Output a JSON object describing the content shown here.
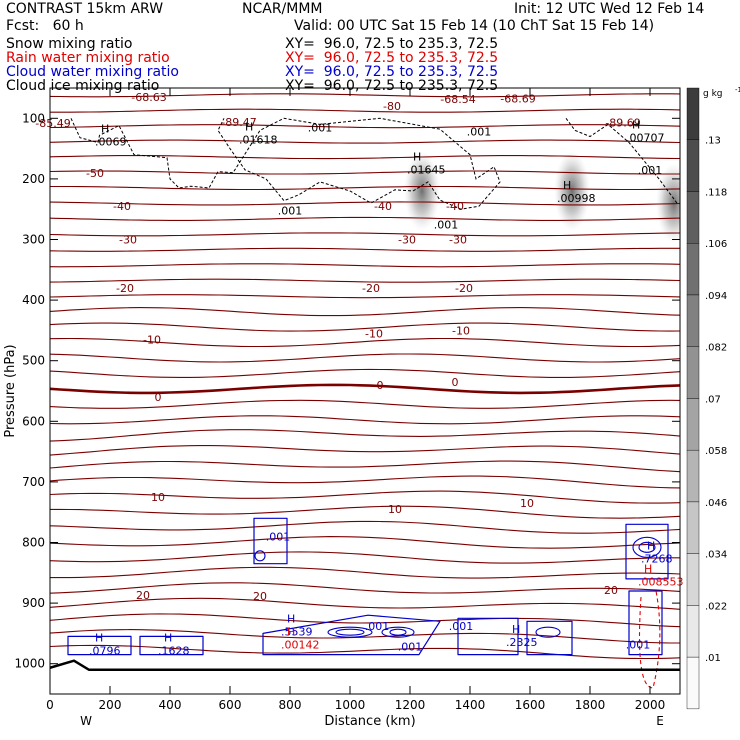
{
  "header": {
    "model": "CONTRAST 15km ARW",
    "center": "NCAR/MMM",
    "init": "Init: 12 UTC Wed 12 Feb 14",
    "fcst": "Fcst:   60 h",
    "valid": "Valid: 00 UTC Sat 15 Feb 14 (10 ChT Sat 15 Feb 14)"
  },
  "legend": [
    {
      "name": "Snow mixing ratio",
      "xy": "XY=  96.0, 72.5 to 235.3, 72.5",
      "color": "#000000"
    },
    {
      "name": "Rain water mixing ratio",
      "xy": "XY=  96.0, 72.5 to 235.3, 72.5",
      "color": "#e00000"
    },
    {
      "name": "Cloud water mixing ratio",
      "xy": "XY=  96.0, 72.5 to 235.3, 72.5",
      "color": "#0000cc"
    },
    {
      "name": "Cloud ice mixing ratio",
      "xy": "XY=  96.0, 72.5 to 235.3, 72.5",
      "color": "#000000"
    }
  ],
  "chart_data": {
    "type": "contour",
    "xlabel": "Distance (km)",
    "ylabel": "Pressure (hPa)",
    "xlim": [
      0,
      2100
    ],
    "ylim": [
      1050,
      50
    ],
    "x_ticks": [
      0,
      200,
      400,
      600,
      800,
      1000,
      1200,
      1400,
      1600,
      1800,
      2000
    ],
    "y_ticks": [
      100,
      200,
      300,
      400,
      500,
      600,
      700,
      800,
      900,
      1000
    ],
    "x_end_labels": {
      "left": "W",
      "right": "E"
    },
    "temperature_contours": {
      "color": "#7a0000",
      "labels": [
        {
          "text": "-50",
          "x": 150,
          "p": 190
        },
        {
          "text": "-40",
          "x": 240,
          "p": 245
        },
        {
          "text": "-40",
          "x": 1110,
          "p": 245
        },
        {
          "text": "-40",
          "x": 1350,
          "p": 245
        },
        {
          "text": "-30",
          "x": 260,
          "p": 300
        },
        {
          "text": "-30",
          "x": 1190,
          "p": 300
        },
        {
          "text": "-30",
          "x": 1360,
          "p": 300
        },
        {
          "text": "-20",
          "x": 250,
          "p": 380
        },
        {
          "text": "-20",
          "x": 1070,
          "p": 380
        },
        {
          "text": "-20",
          "x": 1380,
          "p": 380
        },
        {
          "text": "-10",
          "x": 340,
          "p": 465
        },
        {
          "text": "-10",
          "x": 1080,
          "p": 455
        },
        {
          "text": "-10",
          "x": 1370,
          "p": 450
        },
        {
          "text": "0",
          "x": 360,
          "p": 560
        },
        {
          "text": "0",
          "x": 1100,
          "p": 540
        },
        {
          "text": "0",
          "x": 1350,
          "p": 535
        },
        {
          "text": "10",
          "x": 360,
          "p": 725
        },
        {
          "text": "10",
          "x": 1150,
          "p": 745
        },
        {
          "text": "10",
          "x": 1590,
          "p": 735
        },
        {
          "text": "20",
          "x": 310,
          "p": 887
        },
        {
          "text": "20",
          "x": 700,
          "p": 888
        },
        {
          "text": "20",
          "x": 1870,
          "p": 878
        },
        {
          "text": "-68.63",
          "x": 330,
          "p": 65
        },
        {
          "text": "-80",
          "x": 1140,
          "p": 80
        },
        {
          "text": "-68.54",
          "x": 1360,
          "p": 68
        },
        {
          "text": "-68.69",
          "x": 1560,
          "p": 67
        },
        {
          "text": "-85.49",
          "x": 10,
          "p": 108
        },
        {
          "text": "-89.47",
          "x": 630,
          "p": 106
        },
        {
          "text": "-89.69",
          "x": 1910,
          "p": 107
        }
      ]
    },
    "snow_contours": {
      "color": "#000000",
      "labels": [
        {
          "text": ".001",
          "x": 900,
          "p": 115
        },
        {
          "text": ".001",
          "x": 1430,
          "p": 122
        },
        {
          "text": ".001",
          "x": 800,
          "p": 252
        },
        {
          "text": ".001",
          "x": 1320,
          "p": 275
        },
        {
          "text": ".001",
          "x": 2000,
          "p": 185
        }
      ],
      "maxima": [
        {
          "label": "H",
          "value": ".0069",
          "x": 150,
          "p": 132
        },
        {
          "label": "H",
          "value": ".01618",
          "x": 630,
          "p": 128
        },
        {
          "label": "H",
          "value": ".01645",
          "x": 1190,
          "p": 178
        },
        {
          "label": "H",
          "value": ".00998",
          "x": 1690,
          "p": 225
        },
        {
          "label": "H",
          "value": ".00707",
          "x": 1920,
          "p": 125
        }
      ]
    },
    "rain_contours": {
      "color": "#e00000",
      "maxima": [
        {
          "label": "H",
          "value": ".00142",
          "x": 770,
          "p": 962
        },
        {
          "label": "H",
          "value": ".008553",
          "x": 1960,
          "p": 858
        }
      ]
    },
    "cloud_water_contours": {
      "color": "#0000cc",
      "labels": [
        {
          "text": ".001",
          "x": 760,
          "p": 790
        },
        {
          "text": ".001",
          "x": 1090,
          "p": 938
        },
        {
          "text": ".001",
          "x": 1200,
          "p": 972
        },
        {
          "text": ".001",
          "x": 1370,
          "p": 938
        },
        {
          "text": ".001",
          "x": 1960,
          "p": 968
        }
      ],
      "maxima": [
        {
          "label": "H",
          "value": ".0796",
          "x": 130,
          "p": 972
        },
        {
          "label": "H",
          "value": ".1628",
          "x": 360,
          "p": 972
        },
        {
          "label": "H",
          "value": ".5539",
          "x": 770,
          "p": 940
        },
        {
          "label": "H",
          "value": ".2325",
          "x": 1520,
          "p": 958
        },
        {
          "label": "H",
          "value": ".7268",
          "x": 1970,
          "p": 820
        }
      ]
    },
    "cloud_ice_shading": {
      "blobs": [
        {
          "x": 1240,
          "p": 220
        },
        {
          "x": 1740,
          "p": 220
        },
        {
          "x": 2080,
          "p": 240
        }
      ]
    },
    "colorbar": {
      "unit": "g kg",
      "unit_exp": "-1",
      "ticks": [
        ".13",
        ".118",
        ".106",
        ".094",
        ".082",
        ".07",
        ".058",
        ".046",
        ".034",
        ".022",
        ".01"
      ]
    }
  }
}
